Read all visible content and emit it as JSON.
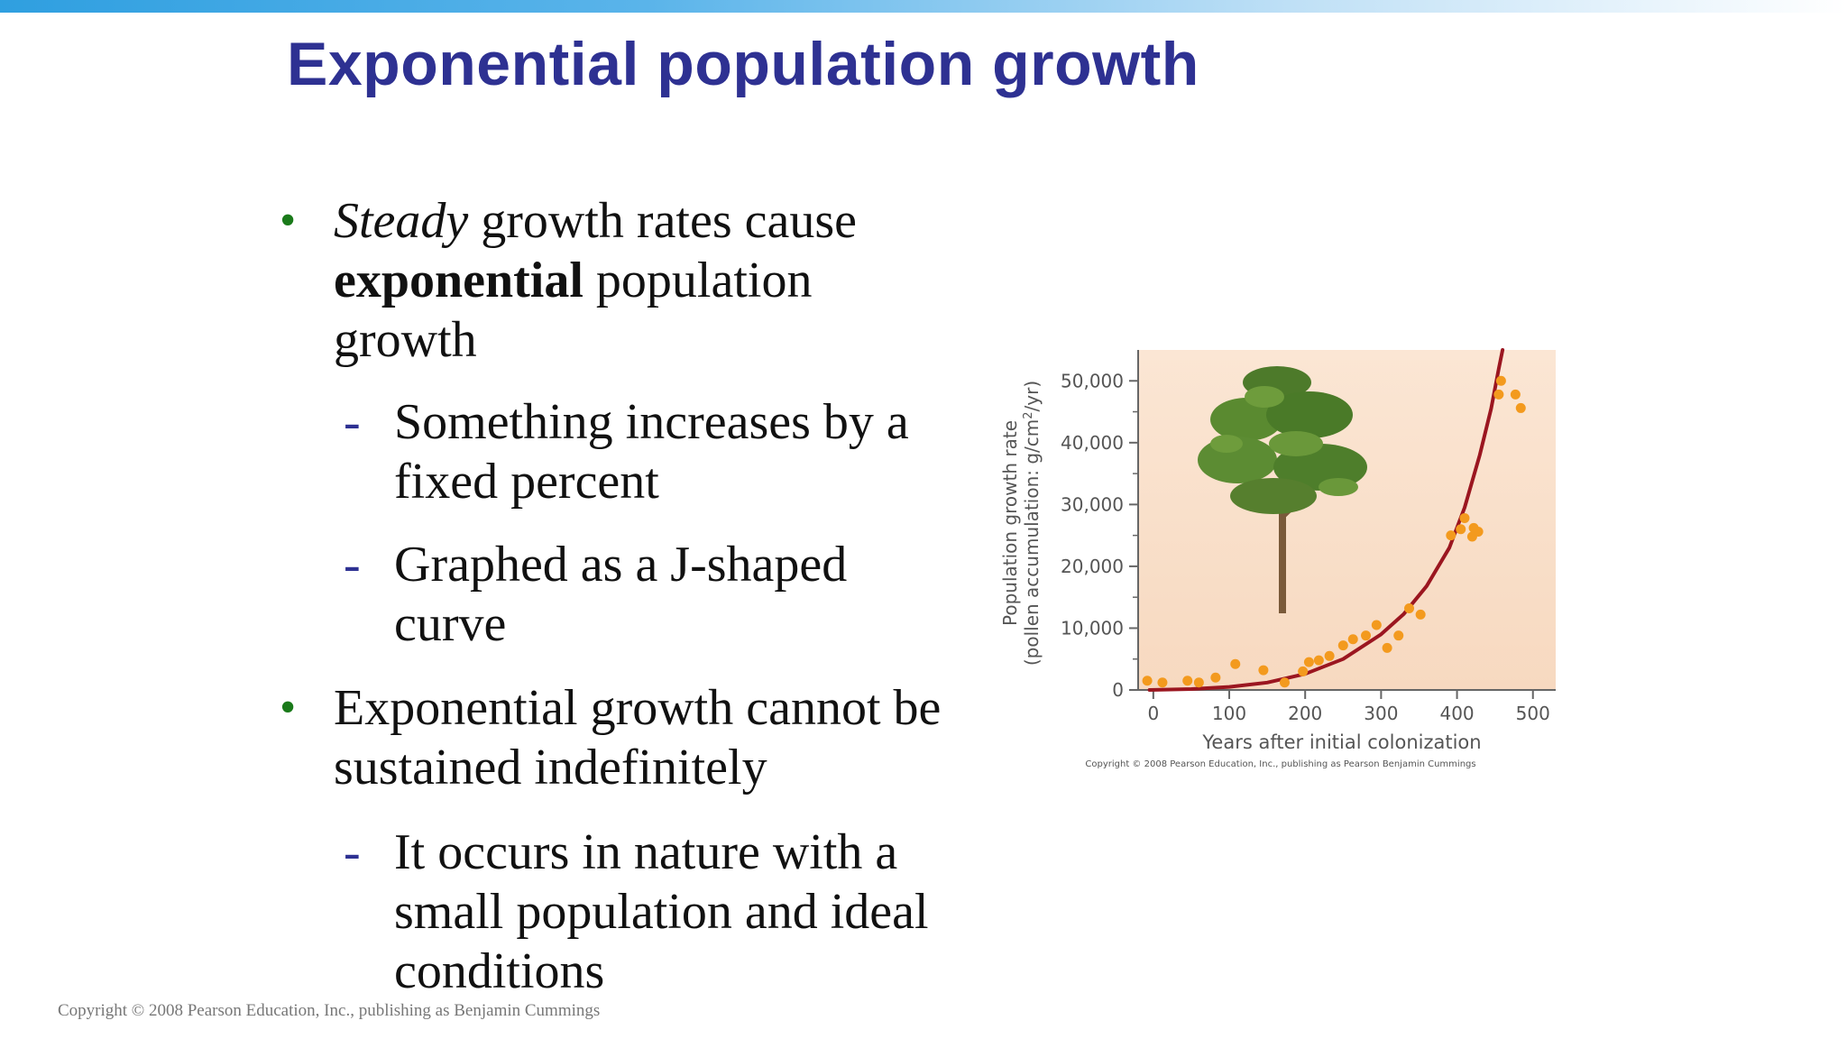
{
  "slide": {
    "title": "Exponential population growth",
    "footer": "Copyright © 2008 Pearson Education, Inc., publishing as Benjamin Cummings"
  },
  "bullets": {
    "b1": {
      "marker": "•",
      "line1_em": "Steady",
      "line1_rest": " growth rates cause",
      "line2_strong": "exponential",
      "line2_rest": " population",
      "line3": "growth"
    },
    "b1a": {
      "marker": "-",
      "line1": "Something increases by a",
      "line2": "fixed percent"
    },
    "b1b": {
      "marker": "-",
      "line1": "Graphed as a J-shaped",
      "line2": "curve"
    },
    "b2": {
      "marker": "•",
      "line1": "Exponential growth cannot be",
      "line2": "sustained indefinitely"
    },
    "b2a": {
      "marker": "-",
      "line1": "It occurs in nature with a",
      "line2": "small population and ideal",
      "line3": "conditions"
    }
  },
  "chart_data": {
    "type": "scatter",
    "title": "",
    "xlabel": "Years after initial colonization",
    "ylabel_line1": "Population growth rate",
    "ylabel_line2_pre": "(pollen accumulation: g/cm",
    "ylabel_line2_sup": "2",
    "ylabel_line2_post": "/yr)",
    "xlim": [
      -20,
      530
    ],
    "ylim": [
      0,
      55000
    ],
    "xticks": [
      0,
      100,
      200,
      300,
      400,
      500
    ],
    "xtick_labels": [
      "0",
      "100",
      "200",
      "300",
      "400",
      "500"
    ],
    "yticks": [
      0,
      10000,
      20000,
      30000,
      40000,
      50000
    ],
    "ytick_labels": [
      "0",
      "10,000",
      "20,000",
      "30,000",
      "40,000",
      "50,000"
    ],
    "copyright": "Copyright © 2008 Pearson Education, Inc., publishing as Pearson Benjamin Cummings",
    "colors": {
      "points": "#f39a1e",
      "curve": "#9b1620",
      "background_top": "#fbe6d4",
      "background_bottom": "#f7d9c0",
      "axis": "#666666"
    },
    "series": [
      {
        "kind": "points",
        "x": [
          -8,
          12,
          45,
          60,
          82,
          108,
          145,
          173,
          197,
          205,
          218,
          232,
          250,
          263,
          280,
          294,
          308,
          323,
          337,
          352,
          392,
          405,
          410,
          420,
          422,
          428,
          455,
          458,
          477,
          484
        ],
        "y": [
          1500,
          1200,
          1500,
          1200,
          2000,
          4200,
          3200,
          1200,
          3000,
          4500,
          4800,
          5500,
          7200,
          8200,
          8800,
          10500,
          6800,
          8800,
          13200,
          12200,
          25000,
          26000,
          27800,
          24800,
          26200,
          25600,
          47800,
          50000,
          47800,
          45600
        ]
      },
      {
        "kind": "curve",
        "x": [
          -5,
          50,
          100,
          150,
          200,
          250,
          300,
          330,
          360,
          390,
          410,
          430,
          445,
          455,
          460
        ],
        "y": [
          0,
          150,
          500,
          1200,
          2600,
          5000,
          9000,
          12300,
          16800,
          23000,
          29500,
          38000,
          45500,
          52000,
          55000
        ]
      }
    ]
  }
}
